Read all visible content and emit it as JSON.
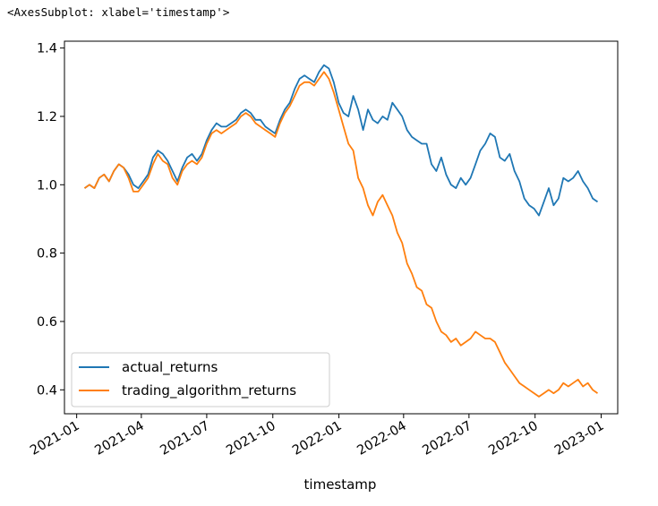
{
  "output_repr": "<AxesSubplot: xlabel='timestamp'>",
  "chart_data": {
    "type": "line",
    "title": "",
    "xlabel": "timestamp",
    "ylabel": "",
    "x_start": "2021-01-12",
    "x_end": "2022-12-27",
    "xlim": [
      "2020-12-15",
      "2023-01-24"
    ],
    "ylim": [
      0.33,
      1.42
    ],
    "y_ticks": [
      0.4,
      0.6,
      0.8,
      1.0,
      1.2,
      1.4
    ],
    "x_ticks": [
      {
        "date": "2021-01-01",
        "label": "2021-01"
      },
      {
        "date": "2021-04-01",
        "label": "2021-04"
      },
      {
        "date": "2021-07-01",
        "label": "2021-07"
      },
      {
        "date": "2021-10-01",
        "label": "2021-10"
      },
      {
        "date": "2022-01-01",
        "label": "2022-01"
      },
      {
        "date": "2022-04-01",
        "label": "2022-04"
      },
      {
        "date": "2022-07-01",
        "label": "2022-07"
      },
      {
        "date": "2022-10-01",
        "label": "2022-10"
      },
      {
        "date": "2023-01-01",
        "label": "2023-01"
      }
    ],
    "grid": false,
    "legend_position": "lower-left",
    "series": [
      {
        "name": "actual_returns",
        "color": "#1f77b4",
        "values": [
          0.99,
          1.0,
          0.99,
          1.02,
          1.03,
          1.01,
          1.04,
          1.06,
          1.05,
          1.03,
          1.0,
          0.99,
          1.01,
          1.03,
          1.08,
          1.1,
          1.09,
          1.07,
          1.04,
          1.01,
          1.05,
          1.08,
          1.09,
          1.07,
          1.09,
          1.13,
          1.16,
          1.18,
          1.17,
          1.17,
          1.18,
          1.19,
          1.21,
          1.22,
          1.21,
          1.19,
          1.19,
          1.17,
          1.16,
          1.15,
          1.19,
          1.22,
          1.24,
          1.28,
          1.31,
          1.32,
          1.31,
          1.3,
          1.33,
          1.35,
          1.34,
          1.3,
          1.24,
          1.21,
          1.2,
          1.26,
          1.22,
          1.16,
          1.22,
          1.19,
          1.18,
          1.2,
          1.19,
          1.24,
          1.22,
          1.2,
          1.16,
          1.14,
          1.13,
          1.12,
          1.12,
          1.06,
          1.04,
          1.08,
          1.03,
          1.0,
          0.99,
          1.02,
          1.0,
          1.02,
          1.06,
          1.1,
          1.12,
          1.15,
          1.14,
          1.08,
          1.07,
          1.09,
          1.04,
          1.01,
          0.96,
          0.94,
          0.93,
          0.91,
          0.95,
          0.99,
          0.94,
          0.96,
          1.02,
          1.01,
          1.02,
          1.04,
          1.01,
          0.99,
          0.96,
          0.95
        ]
      },
      {
        "name": "trading_algorithm_returns",
        "color": "#ff7f0e",
        "values": [
          0.99,
          1.0,
          0.99,
          1.02,
          1.03,
          1.01,
          1.04,
          1.06,
          1.05,
          1.02,
          0.98,
          0.98,
          1.0,
          1.02,
          1.06,
          1.09,
          1.07,
          1.06,
          1.02,
          1.0,
          1.04,
          1.06,
          1.07,
          1.06,
          1.08,
          1.12,
          1.15,
          1.16,
          1.15,
          1.16,
          1.17,
          1.18,
          1.2,
          1.21,
          1.2,
          1.18,
          1.17,
          1.16,
          1.15,
          1.14,
          1.18,
          1.21,
          1.23,
          1.26,
          1.29,
          1.3,
          1.3,
          1.29,
          1.31,
          1.33,
          1.31,
          1.27,
          1.22,
          1.17,
          1.12,
          1.1,
          1.02,
          0.99,
          0.94,
          0.91,
          0.95,
          0.97,
          0.94,
          0.91,
          0.86,
          0.83,
          0.77,
          0.74,
          0.7,
          0.69,
          0.65,
          0.64,
          0.6,
          0.57,
          0.56,
          0.54,
          0.55,
          0.53,
          0.54,
          0.55,
          0.57,
          0.56,
          0.55,
          0.55,
          0.54,
          0.51,
          0.48,
          0.46,
          0.44,
          0.42,
          0.41,
          0.4,
          0.39,
          0.38,
          0.39,
          0.4,
          0.39,
          0.4,
          0.42,
          0.41,
          0.42,
          0.43,
          0.41,
          0.42,
          0.4,
          0.39
        ]
      }
    ]
  }
}
